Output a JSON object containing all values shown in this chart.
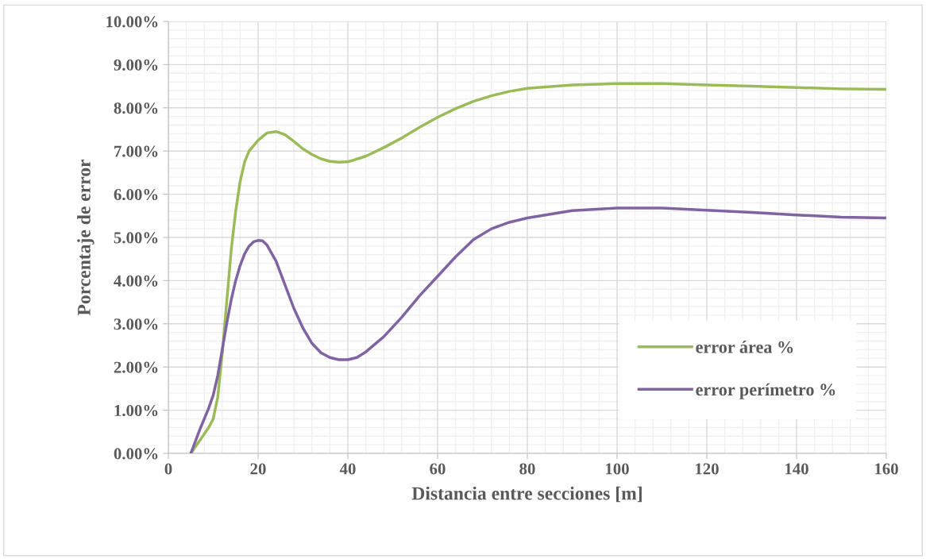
{
  "chart_data": {
    "type": "line",
    "xlabel": "Distancia entre secciones [m]",
    "ylabel": "Porcentaje de error",
    "series": [
      {
        "name": "error área %",
        "color": "#9bbb59",
        "x": [
          5,
          7,
          9,
          10,
          11,
          12,
          13,
          14,
          15,
          16,
          17,
          18,
          20,
          22,
          24,
          26,
          28,
          30,
          32,
          34,
          36,
          38,
          40,
          44,
          48,
          52,
          56,
          60,
          64,
          68,
          72,
          76,
          80,
          90,
          100,
          110,
          120,
          130,
          140,
          150,
          160
        ],
        "values": [
          0,
          0.3,
          0.6,
          0.8,
          1.3,
          2.3,
          3.5,
          4.7,
          5.6,
          6.3,
          6.75,
          7.0,
          7.25,
          7.42,
          7.45,
          7.38,
          7.22,
          7.05,
          6.92,
          6.82,
          6.76,
          6.74,
          6.75,
          6.88,
          7.08,
          7.3,
          7.55,
          7.78,
          7.98,
          8.15,
          8.28,
          8.38,
          8.45,
          8.53,
          8.56,
          8.56,
          8.53,
          8.5,
          8.47,
          8.44,
          8.43
        ]
      },
      {
        "name": "error perímetro %",
        "color": "#8064a2",
        "x": [
          5,
          7,
          9,
          10,
          11,
          12,
          13,
          14,
          15,
          16,
          17,
          18,
          19,
          20,
          21,
          22,
          24,
          26,
          28,
          30,
          32,
          34,
          36,
          38,
          40,
          42,
          44,
          48,
          52,
          56,
          60,
          64,
          68,
          72,
          76,
          80,
          90,
          100,
          110,
          120,
          130,
          140,
          150,
          160
        ],
        "values": [
          0,
          0.55,
          1.05,
          1.35,
          1.8,
          2.4,
          3.0,
          3.55,
          4.0,
          4.35,
          4.62,
          4.8,
          4.9,
          4.93,
          4.92,
          4.82,
          4.45,
          3.9,
          3.35,
          2.9,
          2.55,
          2.33,
          2.22,
          2.17,
          2.17,
          2.22,
          2.35,
          2.7,
          3.15,
          3.65,
          4.1,
          4.55,
          4.95,
          5.2,
          5.35,
          5.45,
          5.62,
          5.68,
          5.68,
          5.63,
          5.58,
          5.52,
          5.47,
          5.45
        ]
      }
    ],
    "xlim": [
      0,
      160
    ],
    "xticks": [
      0,
      20,
      40,
      60,
      80,
      100,
      120,
      140,
      160
    ],
    "ylim": [
      0,
      10
    ],
    "yticks": [
      {
        "value": 0,
        "label": "0.00%"
      },
      {
        "value": 1,
        "label": "1.00%"
      },
      {
        "value": 2,
        "label": "2.00%"
      },
      {
        "value": 3,
        "label": "3.00%"
      },
      {
        "value": 4,
        "label": "4.00%"
      },
      {
        "value": 5,
        "label": "5.00%"
      },
      {
        "value": 6,
        "label": "6.00%"
      },
      {
        "value": 7,
        "label": "7.00%"
      },
      {
        "value": 8,
        "label": "8.00%"
      },
      {
        "value": 9,
        "label": "9.00%"
      },
      {
        "value": 10,
        "label": "10.00%"
      }
    ],
    "grid": true,
    "legend": "bottom right",
    "marker": "none",
    "line_style": "solid"
  }
}
